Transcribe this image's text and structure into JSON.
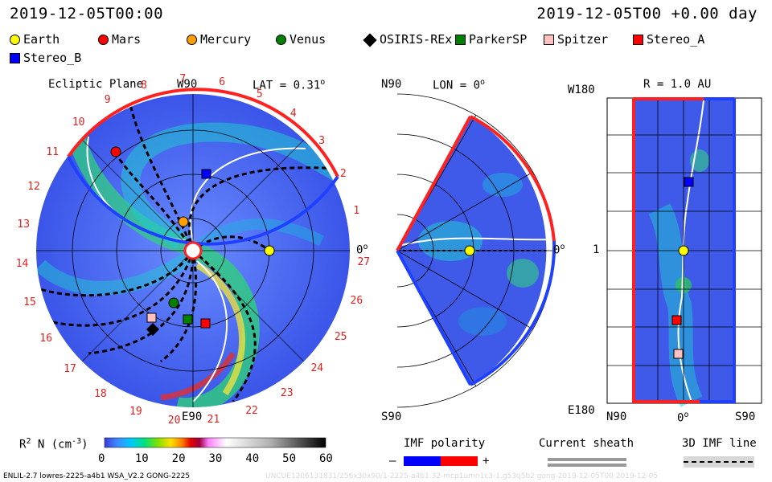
{
  "header": {
    "date_left": "2019-12-05T00:00",
    "date_right": "2019-12-05T00 +0.00 day"
  },
  "legend": {
    "items": [
      {
        "label": "Earth",
        "color": "#ffff00",
        "shape": "circle"
      },
      {
        "label": "Mars",
        "color": "#ff0000",
        "shape": "circle"
      },
      {
        "label": "Mercury",
        "color": "#ffa000",
        "shape": "circle"
      },
      {
        "label": "Venus",
        "color": "#008000",
        "shape": "circle"
      },
      {
        "label": "OSIRIS-REx",
        "color": "#000000",
        "shape": "diamond"
      },
      {
        "label": "ParkerSP",
        "color": "#008000",
        "shape": "square"
      },
      {
        "label": "Spitzer",
        "color": "#ffc0c0",
        "shape": "square"
      },
      {
        "label": "Stereo_A",
        "color": "#ff0000",
        "shape": "square"
      },
      {
        "label": "Stereo_B",
        "color": "#0000ff",
        "shape": "square"
      }
    ]
  },
  "panel_ecliptic": {
    "title": "Ecliptic Plane",
    "top_label": "W90",
    "lat_label": "LAT = 0.31",
    "lat_sup": "o",
    "bottom_label": "E90",
    "right_label": "0",
    "right_sup": "o",
    "carrington_numbers": [
      "1",
      "2",
      "3",
      "4",
      "5",
      "6",
      "7",
      "8",
      "9",
      "10",
      "11",
      "12",
      "13",
      "14",
      "15",
      "16",
      "17",
      "18",
      "19",
      "20",
      "21",
      "22",
      "23",
      "24",
      "25",
      "26",
      "27"
    ]
  },
  "panel_meridional": {
    "top_label": "N90",
    "lon_label": "LON = 0",
    "lon_sup": "o",
    "bottom_label": "S90",
    "right_label": "0",
    "right_sup": "o"
  },
  "panel_map": {
    "r_label": "R = 1.0 AU",
    "top_left": "W180",
    "mid_left": "1",
    "bottom_left": "E180",
    "x_left": "N90",
    "x_mid": "0",
    "x_mid_sup": "o",
    "x_right": "S90"
  },
  "colorbar": {
    "label": "R",
    "label_sup": "2",
    "label_rest": " N (cm",
    "label_exp": "-3",
    "label_close": ")",
    "ticks": [
      "0",
      "10",
      "20",
      "30",
      "40",
      "50",
      "60"
    ]
  },
  "imf": {
    "title": "IMF polarity",
    "minus": "–",
    "plus": "+",
    "neg_color": "#0000ff",
    "pos_color": "#ff0000"
  },
  "current_sheath": {
    "title": "Current sheath"
  },
  "imf_line": {
    "title": "3D IMF line"
  },
  "footer": {
    "left": "ENLIL-2.7 lowres-2225-a4b1 WSA_V2.2 GONG-2225",
    "right": "UNCUE1206131831/256x30x90/1-2225-a4b1.32-mcp1umn1c3-1.g53q5b2 gong-2019-12-05T00 2019-12-05"
  }
}
